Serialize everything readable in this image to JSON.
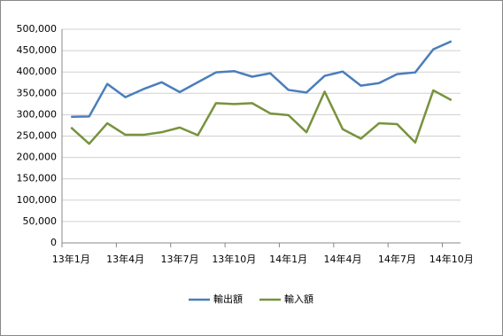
{
  "chart_data": {
    "type": "line",
    "categories": [
      "13年1月",
      null,
      null,
      "13年4月",
      null,
      null,
      "13年7月",
      null,
      null,
      "13年10月",
      null,
      null,
      "14年1月",
      null,
      null,
      "14年4月",
      null,
      null,
      "14年7月",
      null,
      null,
      "14年10月"
    ],
    "series": [
      {
        "name": "輸出額",
        "color": "#4a7ebb",
        "values": [
          295000,
          296000,
          372000,
          341000,
          360000,
          376000,
          353000,
          376000,
          399000,
          402000,
          389000,
          397000,
          358000,
          352000,
          391000,
          401000,
          368000,
          374000,
          395000,
          399000,
          453000,
          472000
        ]
      },
      {
        "name": "輸入額",
        "color": "#77933c",
        "values": [
          270000,
          232000,
          280000,
          253000,
          253000,
          259000,
          270000,
          252000,
          327000,
          325000,
          327000,
          303000,
          299000,
          259000,
          354000,
          266000,
          244000,
          280000,
          278000,
          235000,
          357000,
          334000
        ]
      }
    ],
    "ylim": [
      0,
      500000
    ],
    "yticks": [
      0,
      {
        "value": 50000,
        "label": "50,000"
      },
      {
        "value": 100000,
        "label": "100,000"
      },
      {
        "value": 150000,
        "label": "150,000"
      },
      {
        "value": 200000,
        "label": "200,000"
      },
      {
        "value": 250000,
        "label": "250,000"
      },
      {
        "value": 300000,
        "label": "300,000"
      },
      {
        "value": 350000,
        "label": "350,000"
      },
      {
        "value": 400000,
        "label": "400,000"
      },
      {
        "value": 450000,
        "label": "450,000"
      },
      {
        "value": 500000,
        "label": "500,000"
      }
    ],
    "grid": true,
    "legend": "bottom"
  }
}
